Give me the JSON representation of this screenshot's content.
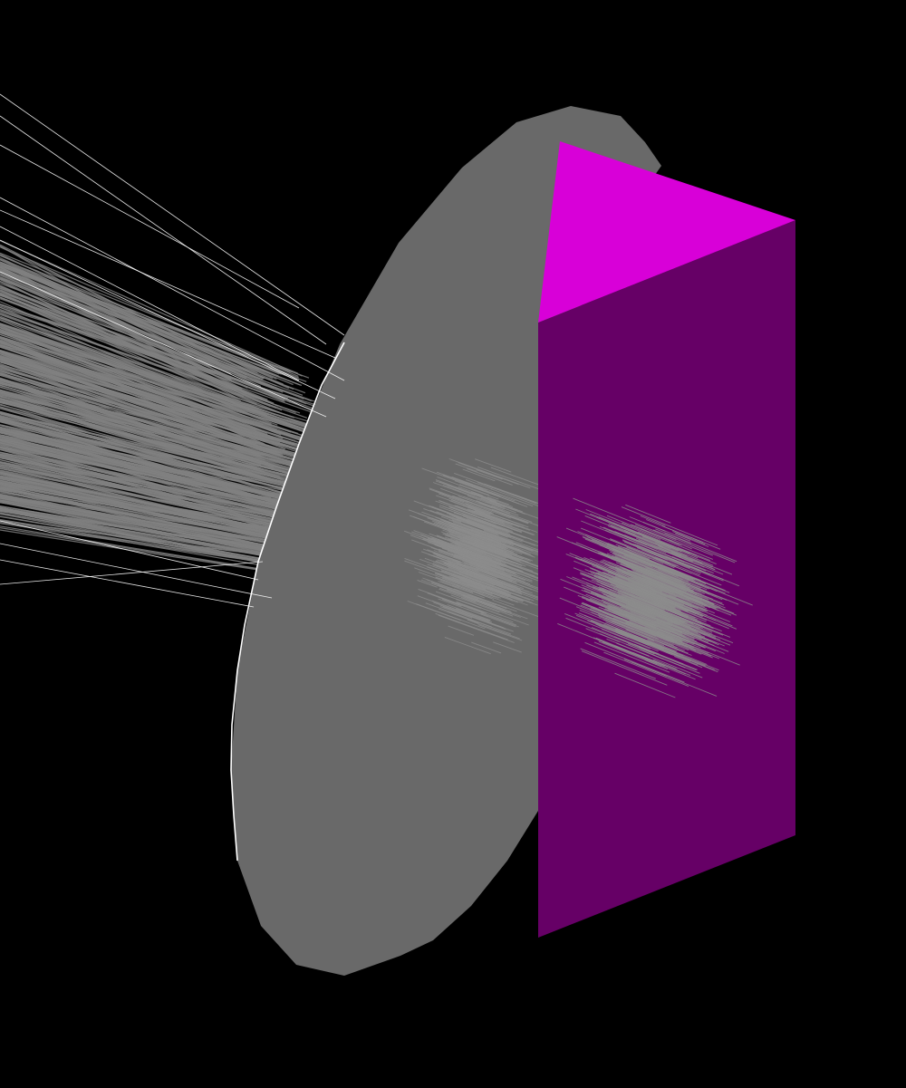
{
  "scene": {
    "background_color": "#000000",
    "lens": {
      "body_color": "#696969",
      "rim_highlight_color": "#ffffff"
    },
    "prism": {
      "top_face_color": "#d800d8",
      "front_face_color": "#660066"
    },
    "rays": {
      "incoming_color": "#808080",
      "stray_color": "#ffffff",
      "spot_color": "#8c8c8c"
    }
  }
}
